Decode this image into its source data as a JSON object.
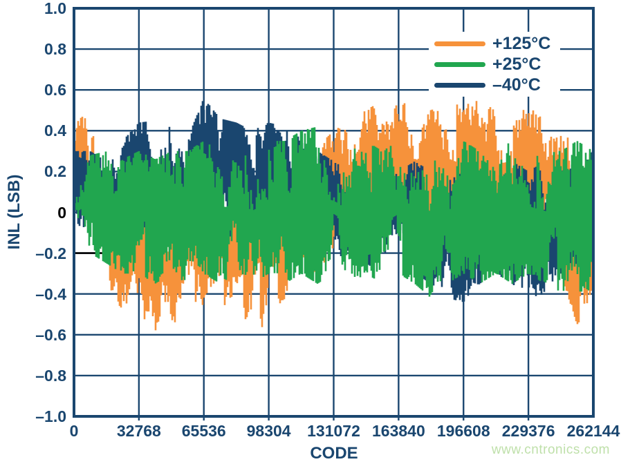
{
  "page": {
    "background": "#FFFFFF"
  },
  "colors": {
    "text": "#1A466F",
    "grid": "#1A466F",
    "axis": "#1A466F",
    "zero_label": "#000000",
    "background": "#FFFFFF"
  },
  "watermark": {
    "text": "www.cntronics.com",
    "color": "#BFE0AA"
  },
  "chart_data": {
    "type": "line",
    "title": "",
    "xlabel": "CODE",
    "ylabel": "INL (LSB)",
    "xlim": [
      0,
      262144
    ],
    "ylim": [
      -1.0,
      1.0
    ],
    "grid": true,
    "legend_position": "top-right",
    "xticks": [
      "0",
      "32768",
      "65536",
      "98304",
      "131072",
      "163840",
      "196608",
      "229376",
      "262144"
    ],
    "xtick_values": [
      0,
      32768,
      65536,
      98304,
      131072,
      163840,
      196608,
      229376,
      262144
    ],
    "yticks": [
      "1.0",
      "0.8",
      "0.6",
      "0.4",
      "0.2",
      "0",
      "–0.2",
      "–0.4",
      "–0.6",
      "–0.8",
      "–1.0"
    ],
    "ytick_values": [
      1.0,
      0.8,
      0.6,
      0.4,
      0.2,
      0,
      -0.2,
      -0.4,
      -0.6,
      -0.8,
      -1.0
    ],
    "black_inner_tick_y": -0.2,
    "description": "INL noise bands vs code for an ADC at three temperatures; envelope = [code, min INL, max INL] in LSB",
    "draw_order": [
      0,
      2,
      1
    ],
    "series": [
      {
        "name": "plus125C",
        "label": "+125°C",
        "color": "#F6923B",
        "seed": 11,
        "envelope": [
          [
            0,
            -0.05,
            0.35
          ],
          [
            2048,
            0.0,
            0.5
          ],
          [
            4096,
            0.05,
            0.58
          ],
          [
            8192,
            -0.1,
            0.42
          ],
          [
            12288,
            -0.18,
            0.3
          ],
          [
            16384,
            -0.32,
            0.25
          ],
          [
            20480,
            -0.45,
            0.18
          ],
          [
            24576,
            -0.5,
            0.12
          ],
          [
            32768,
            -0.52,
            0.1
          ],
          [
            40960,
            -0.62,
            0.08
          ],
          [
            49152,
            -0.55,
            0.12
          ],
          [
            57344,
            -0.5,
            0.08
          ],
          [
            65536,
            -0.45,
            0.12
          ],
          [
            73728,
            -0.52,
            0.15
          ],
          [
            81920,
            -0.45,
            0.2
          ],
          [
            90112,
            -0.58,
            0.12
          ],
          [
            98304,
            -0.55,
            0.18
          ],
          [
            106496,
            -0.42,
            0.22
          ],
          [
            114688,
            -0.35,
            0.28
          ],
          [
            122880,
            -0.28,
            0.32
          ],
          [
            131072,
            -0.2,
            0.4
          ],
          [
            139264,
            -0.15,
            0.45
          ],
          [
            147456,
            -0.12,
            0.5
          ],
          [
            155648,
            -0.1,
            0.55
          ],
          [
            163840,
            -0.15,
            0.52
          ],
          [
            172032,
            -0.1,
            0.56
          ],
          [
            180224,
            -0.12,
            0.5
          ],
          [
            188416,
            -0.08,
            0.55
          ],
          [
            196608,
            -0.12,
            0.52
          ],
          [
            204800,
            -0.1,
            0.56
          ],
          [
            212992,
            -0.15,
            0.5
          ],
          [
            221184,
            -0.12,
            0.46
          ],
          [
            229376,
            -0.15,
            0.52
          ],
          [
            237568,
            -0.2,
            0.45
          ],
          [
            245760,
            -0.3,
            0.4
          ],
          [
            253952,
            -0.55,
            0.32
          ],
          [
            262144,
            -0.45,
            0.28
          ]
        ]
      },
      {
        "name": "plus25C",
        "label": "+25°C",
        "color": "#21A64F",
        "seed": 23,
        "envelope": [
          [
            0,
            -0.08,
            0.12
          ],
          [
            4096,
            -0.15,
            0.22
          ],
          [
            8192,
            -0.2,
            0.28
          ],
          [
            16384,
            -0.25,
            0.3
          ],
          [
            24576,
            -0.3,
            0.26
          ],
          [
            32768,
            -0.3,
            0.3
          ],
          [
            40960,
            -0.35,
            0.26
          ],
          [
            49152,
            -0.3,
            0.3
          ],
          [
            57344,
            -0.35,
            0.3
          ],
          [
            65536,
            -0.3,
            0.35
          ],
          [
            73728,
            -0.35,
            0.3
          ],
          [
            81920,
            -0.3,
            0.35
          ],
          [
            90112,
            -0.35,
            0.3
          ],
          [
            98304,
            -0.3,
            0.35
          ],
          [
            106496,
            -0.35,
            0.35
          ],
          [
            114688,
            -0.3,
            0.4
          ],
          [
            122880,
            -0.35,
            0.42
          ],
          [
            131072,
            -0.3,
            0.35
          ],
          [
            139264,
            -0.35,
            0.3
          ],
          [
            147456,
            -0.3,
            0.35
          ],
          [
            155648,
            -0.35,
            0.3
          ],
          [
            163840,
            -0.3,
            0.35
          ],
          [
            172032,
            -0.35,
            0.3
          ],
          [
            180224,
            -0.42,
            0.3
          ],
          [
            188416,
            -0.35,
            0.3
          ],
          [
            196608,
            -0.3,
            0.35
          ],
          [
            204800,
            -0.35,
            0.3
          ],
          [
            212992,
            -0.3,
            0.3
          ],
          [
            221184,
            -0.35,
            0.35
          ],
          [
            229376,
            -0.3,
            0.3
          ],
          [
            237568,
            -0.35,
            0.3
          ],
          [
            245760,
            -0.4,
            0.3
          ],
          [
            253952,
            -0.46,
            0.35
          ],
          [
            262144,
            -0.35,
            0.3
          ]
        ]
      },
      {
        "name": "minus40C",
        "label": "–40°C",
        "color": "#1A466F",
        "seed": 37,
        "envelope": [
          [
            0,
            -0.05,
            0.3
          ],
          [
            8192,
            -0.1,
            0.3
          ],
          [
            16384,
            -0.15,
            0.25
          ],
          [
            24576,
            -0.1,
            0.35
          ],
          [
            32768,
            -0.1,
            0.44
          ],
          [
            40960,
            -0.1,
            0.45
          ],
          [
            49152,
            -0.15,
            0.42
          ],
          [
            57344,
            -0.1,
            0.36
          ],
          [
            65536,
            -0.1,
            0.56
          ],
          [
            73728,
            -0.15,
            0.46
          ],
          [
            81920,
            -0.1,
            0.44
          ],
          [
            90112,
            -0.15,
            0.4
          ],
          [
            98304,
            -0.1,
            0.44
          ],
          [
            106496,
            -0.1,
            0.42
          ],
          [
            114688,
            -0.15,
            0.36
          ],
          [
            122880,
            -0.2,
            0.3
          ],
          [
            131072,
            -0.25,
            0.25
          ],
          [
            139264,
            -0.2,
            0.2
          ],
          [
            147456,
            -0.25,
            0.25
          ],
          [
            155648,
            -0.3,
            0.2
          ],
          [
            163840,
            -0.25,
            0.2
          ],
          [
            172032,
            -0.3,
            0.25
          ],
          [
            180224,
            -0.35,
            0.2
          ],
          [
            188416,
            -0.42,
            0.15
          ],
          [
            196608,
            -0.44,
            0.2
          ],
          [
            204800,
            -0.35,
            0.15
          ],
          [
            212992,
            -0.3,
            0.2
          ],
          [
            221184,
            -0.35,
            0.25
          ],
          [
            229376,
            -0.42,
            0.2
          ],
          [
            237568,
            -0.4,
            0.25
          ],
          [
            245760,
            -0.3,
            0.2
          ],
          [
            253952,
            -0.25,
            0.25
          ],
          [
            262144,
            -0.2,
            0.3
          ]
        ]
      }
    ]
  }
}
